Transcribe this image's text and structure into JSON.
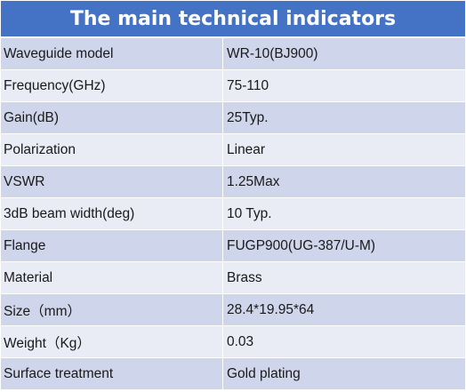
{
  "table": {
    "title": "The main technical indicators",
    "rows": [
      {
        "parameter": "Waveguide model",
        "value": "WR-10(BJ900)"
      },
      {
        "parameter": "Frequency(GHz)",
        "value": "75-110"
      },
      {
        "parameter": "Gain(dB)",
        "value": "25Typ."
      },
      {
        "parameter": "Polarization",
        "value": "Linear"
      },
      {
        "parameter": "VSWR",
        "value": "1.25Max"
      },
      {
        "parameter": "3dB beam width(deg)",
        "value": "10 Typ."
      },
      {
        "parameter": "Flange",
        "value": "FUGP900(UG-387/U-M)"
      },
      {
        "parameter": "Material",
        "value": "Brass"
      },
      {
        "parameter": "Size（mm）",
        "value": "28.4*19.95*64"
      },
      {
        "parameter": "Weight（Kg）",
        "value": "0.03"
      },
      {
        "parameter": "Surface treatment",
        "value": "Gold plating"
      }
    ]
  },
  "colors": {
    "header_bg": "#4472c4",
    "row_dark": "#cfd5ea",
    "row_light": "#e9ebf5"
  }
}
